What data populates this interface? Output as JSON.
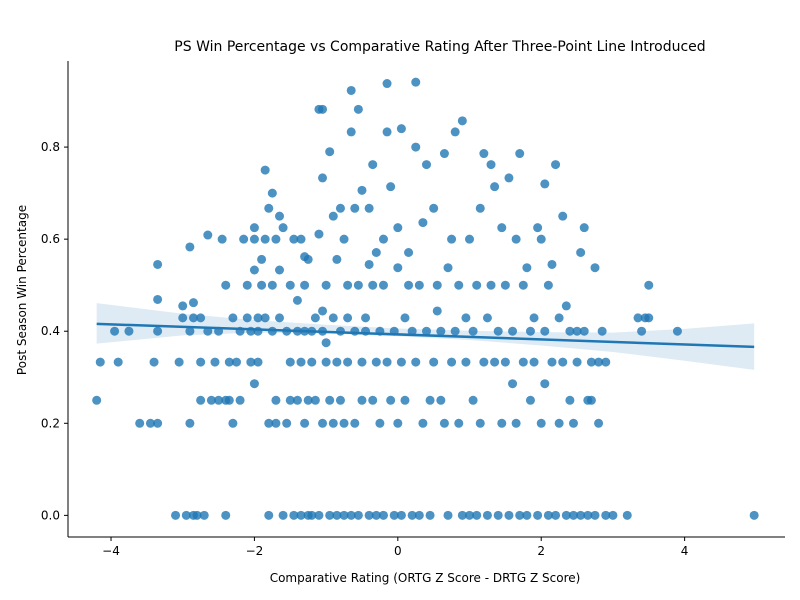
{
  "chart_data": {
    "type": "scatter",
    "title": "PS Win Percentage vs Comparative Rating After Three-Point Line Introduced",
    "xlabel": "Comparative Rating (ORTG Z Score - DRTG Z Score)",
    "ylabel": "Post Season Win Percentage",
    "xlim": [
      -4.6,
      5.4
    ],
    "ylim": [
      -0.047,
      0.987
    ],
    "xticks": [
      -4,
      -2,
      0,
      2,
      4
    ],
    "yticks": [
      0.0,
      0.2,
      0.4,
      0.6,
      0.8
    ],
    "xtick_labels": [
      "−4",
      "−2",
      "0",
      "2",
      "4"
    ],
    "ytick_labels": [
      "0.0",
      "0.2",
      "0.4",
      "0.6",
      "0.8"
    ],
    "grid": false,
    "colors": {
      "points": "#1f77b4",
      "regression_line": "#1f77b4",
      "confidence_band": "#1f77b4"
    },
    "regression": {
      "x": [
        -4.2,
        4.97
      ],
      "y": [
        0.416,
        0.366
      ]
    },
    "confidence_band": {
      "x": [
        -4.2,
        -3.0,
        -2.0,
        -1.0,
        0.0,
        1.0,
        2.0,
        3.0,
        4.0,
        4.97
      ],
      "upper": [
        0.461,
        0.438,
        0.424,
        0.414,
        0.406,
        0.401,
        0.398,
        0.397,
        0.405,
        0.417
      ],
      "lower": [
        0.373,
        0.391,
        0.397,
        0.395,
        0.389,
        0.381,
        0.369,
        0.355,
        0.336,
        0.316
      ]
    },
    "points": [
      [
        -4.2,
        0.25
      ],
      [
        -4.15,
        0.333
      ],
      [
        -3.95,
        0.4
      ],
      [
        -3.9,
        0.333
      ],
      [
        -3.75,
        0.4
      ],
      [
        -3.6,
        0.2
      ],
      [
        -3.45,
        0.2
      ],
      [
        -3.4,
        0.333
      ],
      [
        -3.35,
        0.4
      ],
      [
        -3.35,
        0.2
      ],
      [
        -3.35,
        0.469
      ],
      [
        -3.35,
        0.545
      ],
      [
        -3.1,
        0.0
      ],
      [
        -3.05,
        0.333
      ],
      [
        -3.0,
        0.429
      ],
      [
        -3.0,
        0.455
      ],
      [
        -2.95,
        0.0
      ],
      [
        -2.9,
        0.4
      ],
      [
        -2.9,
        0.2
      ],
      [
        -2.9,
        0.583
      ],
      [
        -2.85,
        0.429
      ],
      [
        -2.85,
        0.462
      ],
      [
        -2.85,
        0.0
      ],
      [
        -2.8,
        0.0
      ],
      [
        -2.75,
        0.429
      ],
      [
        -2.75,
        0.25
      ],
      [
        -2.75,
        0.333
      ],
      [
        -2.7,
        0.0
      ],
      [
        -2.65,
        0.4
      ],
      [
        -2.65,
        0.609
      ],
      [
        -2.6,
        0.25
      ],
      [
        -2.55,
        0.333
      ],
      [
        -2.5,
        0.4
      ],
      [
        -2.5,
        0.25
      ],
      [
        -2.45,
        0.6
      ],
      [
        -2.4,
        0.5
      ],
      [
        -2.4,
        0.25
      ],
      [
        -2.4,
        0.0
      ],
      [
        -2.35,
        0.25
      ],
      [
        -2.35,
        0.333
      ],
      [
        -2.3,
        0.429
      ],
      [
        -2.3,
        0.2
      ],
      [
        -2.25,
        0.333
      ],
      [
        -2.2,
        0.4
      ],
      [
        -2.2,
        0.25
      ],
      [
        -2.15,
        0.6
      ],
      [
        -2.1,
        0.5
      ],
      [
        -2.1,
        0.429
      ],
      [
        -2.05,
        0.4
      ],
      [
        -2.05,
        0.333
      ],
      [
        -2.0,
        0.533
      ],
      [
        -2.0,
        0.625
      ],
      [
        -2.0,
        0.286
      ],
      [
        -2.0,
        0.6
      ],
      [
        -1.95,
        0.333
      ],
      [
        -1.95,
        0.429
      ],
      [
        -1.95,
        0.4
      ],
      [
        -1.9,
        0.556
      ],
      [
        -1.9,
        0.5
      ],
      [
        -1.85,
        0.6
      ],
      [
        -1.85,
        0.429
      ],
      [
        -1.85,
        0.75
      ],
      [
        -1.8,
        0.0
      ],
      [
        -1.8,
        0.667
      ],
      [
        -1.8,
        0.2
      ],
      [
        -1.75,
        0.7
      ],
      [
        -1.75,
        0.5
      ],
      [
        -1.75,
        0.4
      ],
      [
        -1.7,
        0.25
      ],
      [
        -1.7,
        0.6
      ],
      [
        -1.7,
        0.2
      ],
      [
        -1.65,
        0.533
      ],
      [
        -1.65,
        0.65
      ],
      [
        -1.65,
        0.429
      ],
      [
        -1.6,
        0.0
      ],
      [
        -1.6,
        0.625
      ],
      [
        -1.55,
        0.4
      ],
      [
        -1.55,
        0.2
      ],
      [
        -1.5,
        0.333
      ],
      [
        -1.5,
        0.5
      ],
      [
        -1.5,
        0.25
      ],
      [
        -1.45,
        0.0
      ],
      [
        -1.45,
        0.6
      ],
      [
        -1.4,
        0.4
      ],
      [
        -1.4,
        0.467
      ],
      [
        -1.4,
        0.25
      ],
      [
        -1.35,
        0.0
      ],
      [
        -1.35,
        0.333
      ],
      [
        -1.35,
        0.6
      ],
      [
        -1.3,
        0.2
      ],
      [
        -1.3,
        0.5
      ],
      [
        -1.3,
        0.562
      ],
      [
        -1.3,
        0.4
      ],
      [
        -1.25,
        0.0
      ],
      [
        -1.25,
        0.25
      ],
      [
        -1.25,
        0.556
      ],
      [
        -1.2,
        0.4
      ],
      [
        -1.2,
        0.333
      ],
      [
        -1.2,
        0.0
      ],
      [
        -1.15,
        0.25
      ],
      [
        -1.15,
        0.429
      ],
      [
        -1.1,
        0.611
      ],
      [
        -1.1,
        0.0
      ],
      [
        -1.1,
        0.882
      ],
      [
        -1.05,
        0.882
      ],
      [
        -1.05,
        0.444
      ],
      [
        -1.05,
        0.4
      ],
      [
        -1.05,
        0.2
      ],
      [
        -1.05,
        0.733
      ],
      [
        -1.0,
        0.375
      ],
      [
        -1.0,
        0.5
      ],
      [
        -1.0,
        0.333
      ],
      [
        -0.95,
        0.25
      ],
      [
        -0.95,
        0.0
      ],
      [
        -0.95,
        0.79
      ],
      [
        -0.9,
        0.65
      ],
      [
        -0.9,
        0.2
      ],
      [
        -0.9,
        0.429
      ],
      [
        -0.85,
        0.556
      ],
      [
        -0.85,
        0.0
      ],
      [
        -0.85,
        0.333
      ],
      [
        -0.8,
        0.667
      ],
      [
        -0.8,
        0.4
      ],
      [
        -0.8,
        0.25
      ],
      [
        -0.75,
        0.0
      ],
      [
        -0.75,
        0.6
      ],
      [
        -0.75,
        0.2
      ],
      [
        -0.7,
        0.5
      ],
      [
        -0.7,
        0.333
      ],
      [
        -0.7,
        0.429
      ],
      [
        -0.65,
        0.923
      ],
      [
        -0.65,
        0.0
      ],
      [
        -0.65,
        0.833
      ],
      [
        -0.6,
        0.4
      ],
      [
        -0.6,
        0.2
      ],
      [
        -0.6,
        0.667
      ],
      [
        -0.55,
        0.5
      ],
      [
        -0.55,
        0.882
      ],
      [
        -0.55,
        0.0
      ],
      [
        -0.5,
        0.333
      ],
      [
        -0.5,
        0.706
      ],
      [
        -0.5,
        0.25
      ],
      [
        -0.45,
        0.429
      ],
      [
        -0.45,
        0.4
      ],
      [
        -0.4,
        0.0
      ],
      [
        -0.4,
        0.545
      ],
      [
        -0.4,
        0.667
      ],
      [
        -0.35,
        0.25
      ],
      [
        -0.35,
        0.5
      ],
      [
        -0.35,
        0.762
      ],
      [
        -0.3,
        0.333
      ],
      [
        -0.3,
        0.0
      ],
      [
        -0.3,
        0.571
      ],
      [
        -0.25,
        0.4
      ],
      [
        -0.25,
        0.2
      ],
      [
        -0.2,
        0.6
      ],
      [
        -0.2,
        0.0
      ],
      [
        -0.2,
        0.5
      ],
      [
        -0.15,
        0.938
      ],
      [
        -0.15,
        0.333
      ],
      [
        -0.15,
        0.833
      ],
      [
        -0.1,
        0.25
      ],
      [
        -0.1,
        0.714
      ],
      [
        -0.05,
        0.0
      ],
      [
        -0.05,
        0.4
      ],
      [
        0.0,
        0.538
      ],
      [
        0.0,
        0.2
      ],
      [
        0.0,
        0.625
      ],
      [
        0.05,
        0.84
      ],
      [
        0.05,
        0.333
      ],
      [
        0.05,
        0.0
      ],
      [
        0.1,
        0.429
      ],
      [
        0.1,
        0.25
      ],
      [
        0.15,
        0.571
      ],
      [
        0.15,
        0.5
      ],
      [
        0.2,
        0.0
      ],
      [
        0.2,
        0.4
      ],
      [
        0.25,
        0.941
      ],
      [
        0.25,
        0.8
      ],
      [
        0.25,
        0.333
      ],
      [
        0.3,
        0.5
      ],
      [
        0.3,
        0.0
      ],
      [
        0.35,
        0.636
      ],
      [
        0.35,
        0.2
      ],
      [
        0.4,
        0.4
      ],
      [
        0.4,
        0.762
      ],
      [
        0.45,
        0.25
      ],
      [
        0.45,
        0.0
      ],
      [
        0.5,
        0.667
      ],
      [
        0.5,
        0.333
      ],
      [
        0.55,
        0.5
      ],
      [
        0.55,
        0.444
      ],
      [
        0.6,
        0.4
      ],
      [
        0.6,
        0.25
      ],
      [
        0.65,
        0.786
      ],
      [
        0.65,
        0.2
      ],
      [
        0.7,
        0.0
      ],
      [
        0.7,
        0.538
      ],
      [
        0.75,
        0.333
      ],
      [
        0.75,
        0.6
      ],
      [
        0.8,
        0.833
      ],
      [
        0.8,
        0.4
      ],
      [
        0.85,
        0.5
      ],
      [
        0.85,
        0.2
      ],
      [
        0.9,
        0.857
      ],
      [
        0.9,
        0.0
      ],
      [
        0.95,
        0.429
      ],
      [
        0.95,
        0.333
      ],
      [
        1.0,
        0.6
      ],
      [
        1.0,
        0.0
      ],
      [
        1.05,
        0.4
      ],
      [
        1.05,
        0.25
      ],
      [
        1.1,
        0.5
      ],
      [
        1.1,
        0.0
      ],
      [
        1.15,
        0.667
      ],
      [
        1.15,
        0.2
      ],
      [
        1.2,
        0.333
      ],
      [
        1.2,
        0.786
      ],
      [
        1.25,
        0.429
      ],
      [
        1.25,
        0.0
      ],
      [
        1.3,
        0.5
      ],
      [
        1.3,
        0.762
      ],
      [
        1.35,
        0.333
      ],
      [
        1.35,
        0.714
      ],
      [
        1.4,
        0.4
      ],
      [
        1.4,
        0.0
      ],
      [
        1.45,
        0.625
      ],
      [
        1.45,
        0.2
      ],
      [
        1.5,
        0.5
      ],
      [
        1.5,
        0.333
      ],
      [
        1.55,
        0.733
      ],
      [
        1.55,
        0.0
      ],
      [
        1.6,
        0.286
      ],
      [
        1.6,
        0.4
      ],
      [
        1.65,
        0.6
      ],
      [
        1.65,
        0.2
      ],
      [
        1.7,
        0.0
      ],
      [
        1.7,
        0.786
      ],
      [
        1.75,
        0.5
      ],
      [
        1.75,
        0.333
      ],
      [
        1.8,
        0.538
      ],
      [
        1.8,
        0.0
      ],
      [
        1.85,
        0.4
      ],
      [
        1.85,
        0.25
      ],
      [
        1.9,
        0.429
      ],
      [
        1.9,
        0.333
      ],
      [
        1.95,
        0.625
      ],
      [
        1.95,
        0.0
      ],
      [
        2.0,
        0.6
      ],
      [
        2.0,
        0.2
      ],
      [
        2.05,
        0.4
      ],
      [
        2.05,
        0.286
      ],
      [
        2.05,
        0.72
      ],
      [
        2.1,
        0.5
      ],
      [
        2.1,
        0.0
      ],
      [
        2.15,
        0.545
      ],
      [
        2.15,
        0.333
      ],
      [
        2.2,
        0.762
      ],
      [
        2.2,
        0.0
      ],
      [
        2.25,
        0.429
      ],
      [
        2.25,
        0.2
      ],
      [
        2.3,
        0.65
      ],
      [
        2.3,
        0.333
      ],
      [
        2.35,
        0.0
      ],
      [
        2.35,
        0.455
      ],
      [
        2.4,
        0.4
      ],
      [
        2.4,
        0.25
      ],
      [
        2.45,
        0.2
      ],
      [
        2.45,
        0.0
      ],
      [
        2.5,
        0.333
      ],
      [
        2.5,
        0.4
      ],
      [
        2.55,
        0.0
      ],
      [
        2.55,
        0.571
      ],
      [
        2.6,
        0.625
      ],
      [
        2.6,
        0.4
      ],
      [
        2.65,
        0.25
      ],
      [
        2.65,
        0.0
      ],
      [
        2.7,
        0.333
      ],
      [
        2.7,
        0.25
      ],
      [
        2.75,
        0.538
      ],
      [
        2.75,
        0.0
      ],
      [
        2.8,
        0.333
      ],
      [
        2.8,
        0.2
      ],
      [
        2.85,
        0.4
      ],
      [
        2.9,
        0.0
      ],
      [
        2.9,
        0.333
      ],
      [
        3.0,
        0.0
      ],
      [
        3.2,
        0.0
      ],
      [
        3.35,
        0.429
      ],
      [
        3.4,
        0.4
      ],
      [
        3.45,
        0.429
      ],
      [
        3.5,
        0.5
      ],
      [
        3.5,
        0.429
      ],
      [
        3.9,
        0.4
      ],
      [
        4.97,
        0.0
      ]
    ]
  }
}
